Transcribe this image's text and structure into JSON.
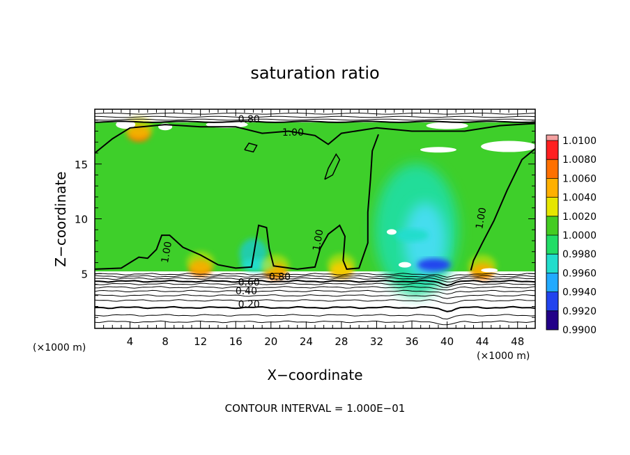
{
  "chart_data": {
    "type": "heatmap",
    "title": "saturation ratio",
    "xlabel": "X−coordinate",
    "ylabel": "Z−coordinate",
    "x_unit_left": "(×1000 m)",
    "x_unit_right": "(×1000 m)",
    "xlim": [
      0,
      50
    ],
    "ylim": [
      0,
      20
    ],
    "x_ticks": [
      4,
      8,
      12,
      16,
      20,
      24,
      28,
      32,
      36,
      40,
      44,
      48
    ],
    "y_ticks": [
      5,
      10,
      15
    ],
    "footer": "CONTOUR INTERVAL = 1.000E−01",
    "contour_labels": [
      {
        "text": "0.80",
        "x": 17.5,
        "z": 18.8
      },
      {
        "text": "1.00",
        "x": 22.5,
        "z": 17.6
      },
      {
        "text": "1.00",
        "x": 8.5,
        "z": 6.9
      },
      {
        "text": "1.00",
        "x": 25.7,
        "z": 8.0
      },
      {
        "text": "1.00",
        "x": 44.2,
        "z": 10.0
      },
      {
        "text": "0.80",
        "x": 21.0,
        "z": 4.4
      },
      {
        "text": "0.60",
        "x": 17.5,
        "z": 3.9
      },
      {
        "text": "0.40",
        "x": 17.2,
        "z": 3.1
      },
      {
        "text": "0.20",
        "x": 17.5,
        "z": 1.9
      }
    ],
    "colorbar": {
      "levels": [
        "1.0100",
        "1.0080",
        "1.0060",
        "1.0040",
        "1.0020",
        "1.0000",
        "0.9980",
        "0.9960",
        "0.9940",
        "0.9920",
        "0.9900"
      ],
      "colors": [
        "#f4a0a0",
        "#ff2020",
        "#ff7000",
        "#ffb000",
        "#e6e600",
        "#44cc22",
        "#22dd66",
        "#22ddcc",
        "#22aaff",
        "#2244ee",
        "#220088"
      ]
    },
    "field_features": [
      {
        "kind": "warm",
        "x": 12.0,
        "z": 5.5,
        "value": 1.006
      },
      {
        "kind": "warm",
        "x": 20.5,
        "z": 5.2,
        "value": 1.006
      },
      {
        "kind": "warm",
        "x": 28.0,
        "z": 5.3,
        "value": 1.004
      },
      {
        "kind": "warm",
        "x": 44.0,
        "z": 5.2,
        "value": 1.006
      },
      {
        "kind": "warm",
        "x": 5.0,
        "z": 17.8,
        "value": 1.006
      },
      {
        "kind": "cool",
        "x": 38.5,
        "z": 5.8,
        "value": 0.992
      },
      {
        "kind": "cool",
        "x": 36.0,
        "z": 8.5,
        "value": 0.996
      },
      {
        "kind": "cool",
        "x": 18.5,
        "z": 5.8,
        "value": 0.996
      }
    ]
  }
}
